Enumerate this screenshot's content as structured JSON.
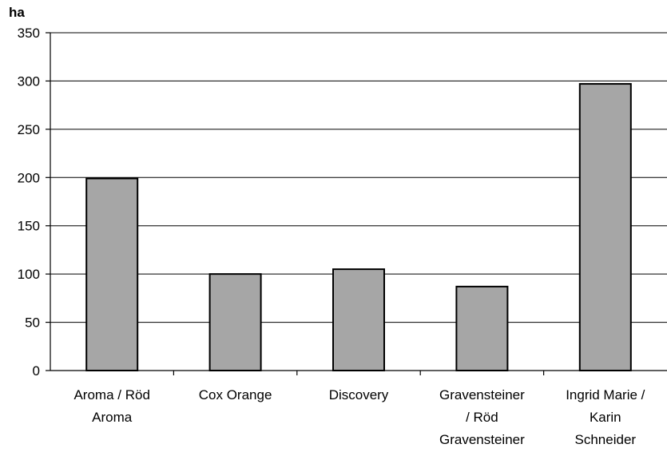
{
  "chart_data": {
    "type": "bar",
    "title": "",
    "xlabel": "",
    "ylabel": "ha",
    "categories": [
      [
        "Aroma / Röd",
        "Aroma"
      ],
      [
        "Cox Orange"
      ],
      [
        "Discovery"
      ],
      [
        "Gravensteiner",
        "/ Röd",
        "Gravensteiner"
      ],
      [
        "Ingrid Marie /",
        "Karin",
        "Schneider"
      ]
    ],
    "values": [
      199,
      100,
      105,
      87,
      297
    ],
    "ylim": [
      0,
      350
    ],
    "yticks": [
      "0",
      "50",
      "100",
      "150",
      "200",
      "250",
      "300",
      "350"
    ],
    "ytick_values": [
      0,
      50,
      100,
      150,
      200,
      250,
      300,
      350
    ],
    "grid": true,
    "legend": "none",
    "colors": {
      "bar": "#a6a6a6",
      "grid": "#000000",
      "axis": "#000000"
    }
  }
}
